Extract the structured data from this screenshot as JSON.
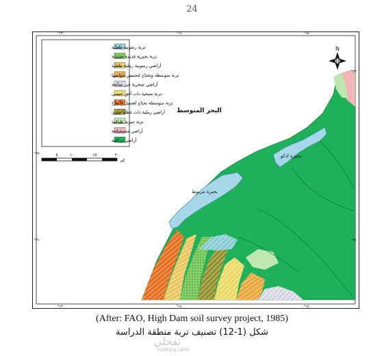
{
  "page_number": "24",
  "map": {
    "sea_label": "البحر المتوسط",
    "lakes": [
      {
        "id": "idku",
        "label": "بحيرة ادكو"
      },
      {
        "id": "maryut",
        "label": "بحيرة مريوط"
      }
    ],
    "north_arrow": {
      "letter": "N"
    },
    "scale_bar": {
      "tick_labels": [
        "٠",
        "٥",
        "١٠",
        "١٥",
        "٢٠"
      ],
      "unit": "كم"
    },
    "frame_ticks": {
      "top": [
        "°١٣٠",
        "°١٤٠",
        "°١٥٠"
      ],
      "left": [
        "°٣٢",
        "°٣١"
      ],
      "bottom": [
        "°١٣٠",
        "°١٤٠",
        "°١٥٠"
      ],
      "right": [
        "°٣٢",
        "°٣١"
      ]
    },
    "legend": {
      "items": [
        {
          "label": "تربة رسوبية طفلية",
          "color": "#9fd8de",
          "pattern": "cyan-hatch"
        },
        {
          "label": "تربة بحيرية قديمة حديدية",
          "color": "#86d06a",
          "pattern": "green-dots"
        },
        {
          "label": "أراضي رسوبية رملية طفلية",
          "color": "#f1d37a",
          "pattern": "yellow-lines"
        },
        {
          "label": "تربة متوسطة وتحتاج لتحسين خواصها",
          "color": "#e8a33a",
          "pattern": "orange-lines"
        },
        {
          "label": "أراضي صخرية غير صالحة",
          "color": "#d7d7e6",
          "pattern": "grey-hatch"
        },
        {
          "label": "تربة سبخية ذات أفق جبسي",
          "color": "#f2e27a",
          "pattern": "yellow-hatch"
        },
        {
          "label": "تربة متوسطة تحتاج لغسيل الأملاح",
          "color": "#e36b1e",
          "pattern": "red-orange-hatch"
        },
        {
          "label": "أراضي رملية ذات غطاء جيري",
          "color": "#8a8a26",
          "pattern": "olive-hatch"
        },
        {
          "label": "تربة جيرية طباقية",
          "color": "#bfe7b0",
          "pattern": "solid"
        },
        {
          "label": "أراضي مستصلحة",
          "color": "#f3b6b6",
          "pattern": "solid"
        },
        {
          "label": "أراضي زراعية",
          "color": "#1fb05a",
          "pattern": "solid"
        }
      ]
    },
    "colors": {
      "sea": "#ffffff",
      "agri": "#1fb05a",
      "lake": "#a6d8ea"
    }
  },
  "caption": {
    "source": "(After: FAO, High Dam soil survey project, 1985)",
    "title": "شكل (1-12)  تصنيف تربة منطقة الدراسة"
  },
  "watermark": {
    "main": "نفحلي",
    "url": "nofezly.com"
  }
}
